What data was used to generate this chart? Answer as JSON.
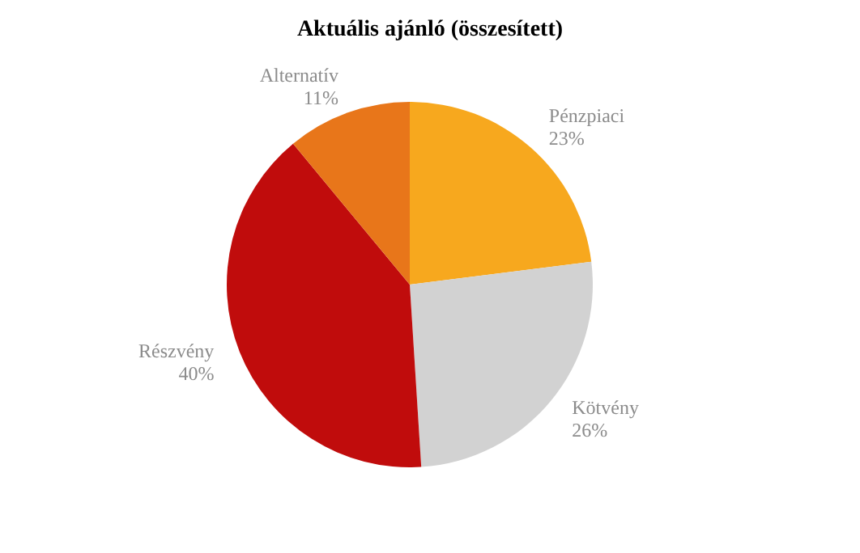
{
  "chart_data": {
    "type": "pie",
    "title": "Aktuális ajánló (összesített)",
    "categories": [
      "Pénzpiaci",
      "Kötvény",
      "Részvény",
      "Alternatív"
    ],
    "values": [
      23,
      26,
      40,
      11
    ],
    "value_labels": [
      "23%",
      "26%",
      "40%",
      "11%"
    ],
    "colors": [
      "#f7a81e",
      "#d2d2d2",
      "#c00c0c",
      "#e8761a"
    ],
    "legend": false
  }
}
